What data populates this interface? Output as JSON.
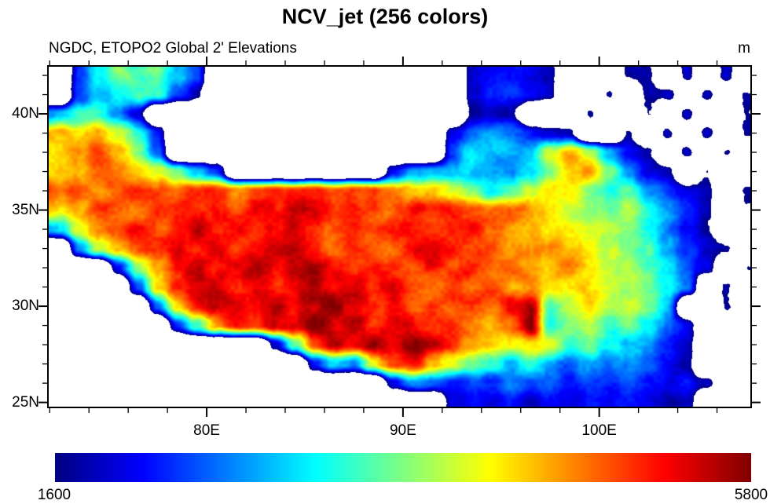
{
  "chart_data": {
    "type": "heatmap",
    "title": "NCV_jet (256 colors)",
    "subtitle": "NGDC, ETOPO2 Global 2' Elevations",
    "units": "m",
    "palette": {
      "name": "NCV_jet",
      "n_colors": 256,
      "style": "jet",
      "below_min_color": "#ffffff",
      "low_color": "#000080",
      "high_color": "#800000"
    },
    "colorbar": {
      "min": 1600,
      "max": 5800,
      "min_label": "1600",
      "max_label": "5800"
    },
    "x_axis": {
      "range": [
        71.95,
        107.7
      ],
      "major_ticks": [
        80,
        90,
        100
      ],
      "major_labels": [
        "80E",
        "90E",
        "100E"
      ],
      "minor_step": 2,
      "minor_start": 72,
      "minor_end": 106
    },
    "y_axis": {
      "range": [
        24.78,
        42.45
      ],
      "major_ticks": [
        40,
        35,
        30,
        25
      ],
      "major_labels": [
        "40N",
        "35N",
        "30N",
        "25N"
      ],
      "minor_step": 1,
      "minor_start": 25,
      "minor_end": 42
    },
    "grid": {
      "lon_start": 72,
      "lon_end": 108,
      "lat_start": 42.5,
      "lat_end": 24.5,
      "ncols": 36,
      "nrows": 18,
      "masked_value": 0,
      "elevation_m": [
        [
          0,
          2400,
          3200,
          3600,
          3400,
          3700,
          3000,
          2300,
          0,
          0,
          0,
          0,
          0,
          0,
          0,
          0,
          0,
          0,
          0,
          0,
          0,
          1900,
          2150,
          2250,
          2050,
          1850,
          0,
          0,
          0,
          1650,
          1800,
          0,
          1800,
          0,
          1850,
          0
        ],
        [
          0,
          2200,
          2800,
          3200,
          3600,
          3400,
          2500,
          1900,
          0,
          0,
          0,
          0,
          0,
          0,
          0,
          0,
          0,
          0,
          0,
          0,
          0,
          2000,
          2300,
          2400,
          2100,
          1900,
          0,
          0,
          1650,
          0,
          1800,
          1900,
          0,
          1800,
          0,
          1650
        ],
        [
          2800,
          3200,
          3400,
          2800,
          2100,
          0,
          0,
          0,
          0,
          0,
          0,
          0,
          0,
          0,
          0,
          0,
          0,
          0,
          0,
          0,
          0,
          1800,
          2000,
          1900,
          0,
          0,
          0,
          1650,
          0,
          0,
          1750,
          0,
          1800,
          0,
          0,
          1650
        ],
        [
          4600,
          4300,
          4700,
          4200,
          3400,
          2300,
          0,
          0,
          0,
          0,
          0,
          0,
          0,
          0,
          0,
          0,
          0,
          0,
          0,
          0,
          1900,
          2400,
          2700,
          2500,
          2300,
          2100,
          1900,
          0,
          0,
          1650,
          0,
          1800,
          0,
          1900,
          0,
          1650
        ],
        [
          4400,
          4800,
          5000,
          4600,
          3800,
          2600,
          0,
          0,
          0,
          0,
          0,
          0,
          0,
          0,
          0,
          0,
          0,
          0,
          0,
          0,
          2200,
          2900,
          2800,
          2800,
          3100,
          4100,
          4600,
          3900,
          2800,
          2100,
          1800,
          0,
          1800,
          0,
          1650,
          0
        ],
        [
          4300,
          4700,
          5000,
          4900,
          4500,
          4200,
          3600,
          2800,
          2400,
          0,
          0,
          0,
          0,
          0,
          0,
          0,
          0,
          2000,
          2700,
          2800,
          2750,
          2800,
          2850,
          2800,
          3200,
          3800,
          4400,
          4800,
          3800,
          2800,
          2200,
          1900,
          0,
          1650,
          0,
          0
        ],
        [
          4900,
          5100,
          4800,
          5000,
          5200,
          5000,
          4900,
          5100,
          5000,
          4800,
          5000,
          5100,
          4900,
          5000,
          4800,
          4900,
          5000,
          4700,
          4500,
          4300,
          4000,
          3600,
          3100,
          3500,
          4100,
          4400,
          4200,
          3700,
          3300,
          3600,
          2900,
          2400,
          2000,
          1800,
          0,
          1650
        ],
        [
          4400,
          4700,
          5200,
          5000,
          4800,
          5300,
          5100,
          4900,
          5200,
          5000,
          5300,
          5100,
          5400,
          5200,
          5000,
          5300,
          5100,
          4900,
          5200,
          5000,
          5100,
          4900,
          4700,
          4800,
          4600,
          4300,
          4000,
          3700,
          3400,
          3800,
          3300,
          2800,
          2300,
          1900,
          0,
          1650
        ],
        [
          3000,
          4300,
          4800,
          5100,
          5300,
          5000,
          5200,
          5400,
          5100,
          5300,
          5000,
          5200,
          5400,
          5100,
          4900,
          5200,
          5000,
          5300,
          5100,
          4900,
          5000,
          5200,
          4800,
          4600,
          4400,
          4200,
          4300,
          4000,
          3800,
          3500,
          3100,
          2700,
          2200,
          1800,
          0,
          0
        ],
        [
          0,
          2600,
          3800,
          4600,
          5000,
          5200,
          5400,
          5100,
          5300,
          5000,
          5200,
          5400,
          5600,
          5200,
          5000,
          5300,
          5100,
          4900,
          5200,
          5400,
          5100,
          4900,
          5100,
          4800,
          4500,
          4700,
          4400,
          4100,
          3900,
          3600,
          3300,
          2900,
          2400,
          1900,
          1650,
          0
        ],
        [
          0,
          0,
          0,
          2200,
          3800,
          4700,
          5200,
          5400,
          5100,
          5300,
          5500,
          5200,
          5400,
          5600,
          5300,
          5100,
          5400,
          5200,
          5000,
          5200,
          4900,
          5100,
          4800,
          5000,
          4700,
          4400,
          4600,
          4300,
          4000,
          3700,
          3400,
          3000,
          2500,
          2000,
          0,
          1650
        ],
        [
          0,
          0,
          0,
          0,
          2400,
          4200,
          5000,
          5300,
          5500,
          5200,
          5400,
          5100,
          5300,
          5500,
          5200,
          5400,
          5100,
          5300,
          5000,
          4800,
          5000,
          4700,
          4900,
          4600,
          4800,
          4500,
          4200,
          4400,
          4100,
          3800,
          3500,
          3100,
          2600,
          0,
          1650,
          0
        ],
        [
          0,
          0,
          0,
          0,
          0,
          2600,
          4400,
          5200,
          5400,
          5600,
          5300,
          5500,
          5200,
          5400,
          5600,
          5300,
          5100,
          5300,
          5000,
          5100,
          4900,
          5000,
          4700,
          5300,
          5700,
          3400,
          4000,
          4300,
          3900,
          4100,
          3600,
          2900,
          0,
          0,
          1650,
          0
        ],
        [
          0,
          0,
          0,
          0,
          0,
          0,
          2200,
          3400,
          4600,
          5400,
          5200,
          5600,
          5300,
          5700,
          5400,
          5600,
          5200,
          5500,
          5300,
          5000,
          5200,
          4800,
          4500,
          4800,
          5700,
          3200,
          3600,
          3900,
          3500,
          3800,
          3200,
          2600,
          2100,
          0,
          0,
          0
        ],
        [
          0,
          0,
          0,
          0,
          0,
          0,
          0,
          0,
          0,
          0,
          0,
          2000,
          3400,
          4800,
          5600,
          5300,
          5700,
          5400,
          5700,
          5500,
          5200,
          4800,
          4400,
          4100,
          4400,
          4000,
          3400,
          3700,
          3300,
          3000,
          2700,
          2300,
          1900,
          0,
          0,
          1650
        ],
        [
          0,
          0,
          0,
          0,
          0,
          0,
          0,
          0,
          0,
          0,
          0,
          0,
          0,
          2200,
          3000,
          2600,
          4200,
          4800,
          5200,
          4600,
          4200,
          3800,
          3400,
          3000,
          3300,
          2900,
          2600,
          2900,
          2500,
          2700,
          2400,
          2100,
          1800,
          0,
          0,
          0
        ],
        [
          0,
          0,
          0,
          0,
          0,
          0,
          0,
          0,
          0,
          0,
          0,
          0,
          0,
          0,
          0,
          0,
          0,
          2000,
          2600,
          2400,
          2200,
          2500,
          2300,
          2700,
          2400,
          2600,
          2300,
          2500,
          2200,
          2400,
          2100,
          2000,
          2200,
          1800,
          0,
          0
        ],
        [
          0,
          0,
          0,
          0,
          0,
          0,
          0,
          0,
          0,
          0,
          0,
          0,
          0,
          0,
          0,
          0,
          0,
          0,
          0,
          0,
          1900,
          2100,
          1900,
          2200,
          2000,
          2300,
          2100,
          2300,
          2000,
          2200,
          1900,
          1800,
          2000,
          0,
          0,
          0
        ]
      ]
    }
  }
}
